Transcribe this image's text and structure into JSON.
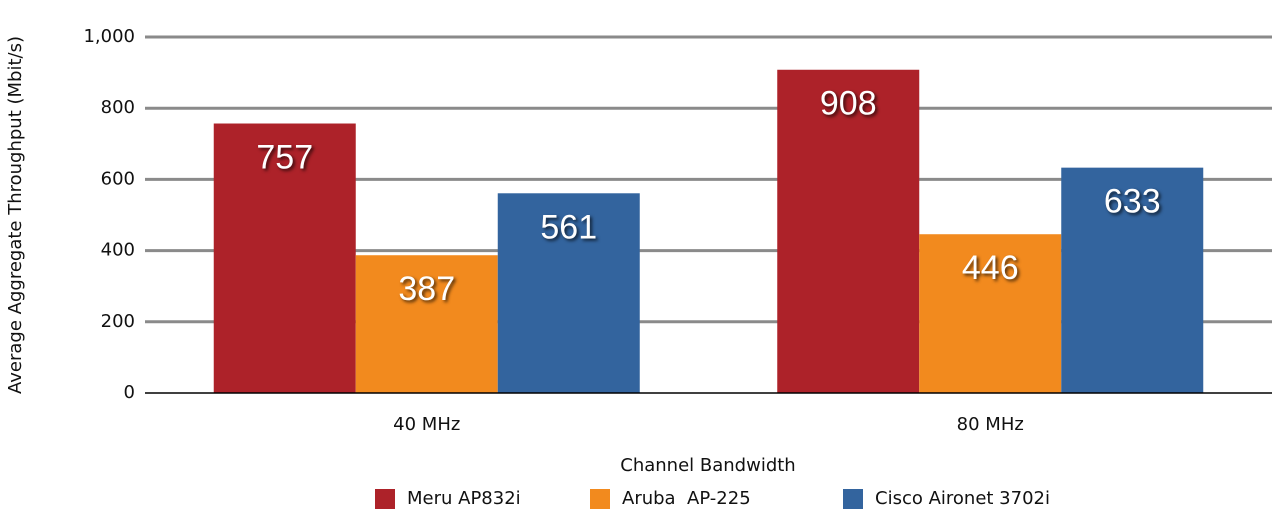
{
  "chart_data": {
    "type": "bar",
    "categories": [
      "40 MHz",
      "80 MHz"
    ],
    "series": [
      {
        "name": "Meru AP832i",
        "color": "#ad2229",
        "values": [
          757,
          908
        ]
      },
      {
        "name": "Aruba  AP-225",
        "color": "#f28a1e",
        "values": [
          387,
          446
        ]
      },
      {
        "name": "Cisco Aironet 3702i",
        "color": "#33649e",
        "values": [
          561,
          633
        ]
      }
    ],
    "ylabel": "Average Aggregate Throughput (Mbit/s)",
    "xlabel": "Channel Bandwidth",
    "ylim": [
      0,
      1000
    ],
    "yticks": [
      0,
      200,
      400,
      600,
      800,
      {
        "value": 1000,
        "label": "1,000"
      }
    ],
    "grid": true,
    "legend": "bottom"
  }
}
